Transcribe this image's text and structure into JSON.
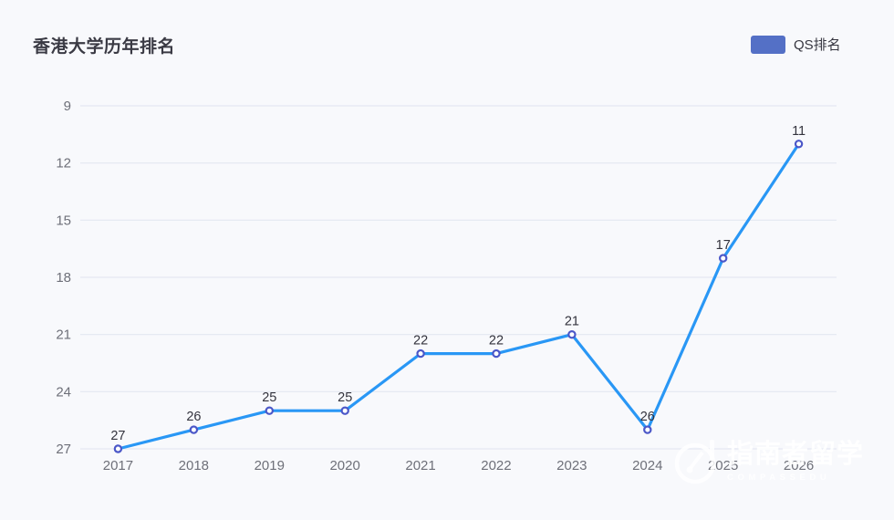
{
  "page": {
    "background_color": "#f8f9fc"
  },
  "header": {
    "title": "香港大学历年排名"
  },
  "legend": {
    "label": "QS排名",
    "swatch_color": "#5470c6"
  },
  "watermark": {
    "name": "指南者留学",
    "subtitle": "COMPASSEDU",
    "icon": "compass-logo-icon"
  },
  "chart_data": {
    "type": "line",
    "title": "香港大学历年排名",
    "categories": [
      "2017",
      "2018",
      "2019",
      "2020",
      "2021",
      "2022",
      "2023",
      "2024",
      "2025",
      "2026"
    ],
    "series": [
      {
        "name": "QS排名",
        "values": [
          27,
          26,
          25,
          25,
          22,
          22,
          21,
          26,
          17,
          11
        ]
      }
    ],
    "y_axis": {
      "ticks": [
        9,
        12,
        15,
        18,
        21,
        24,
        27
      ],
      "min": 9,
      "max": 27,
      "inverted": true
    },
    "data_labels_shown": true,
    "grid": true,
    "legend_position": "top-right",
    "colors": {
      "line": "#2997f5",
      "point_stroke": "#4b57c8",
      "point_fill": "#ffffff",
      "gridline": "#e4e8f1",
      "axis_label": "#6e7079",
      "data_label": "#33333d",
      "title": "#3a3a44"
    }
  }
}
